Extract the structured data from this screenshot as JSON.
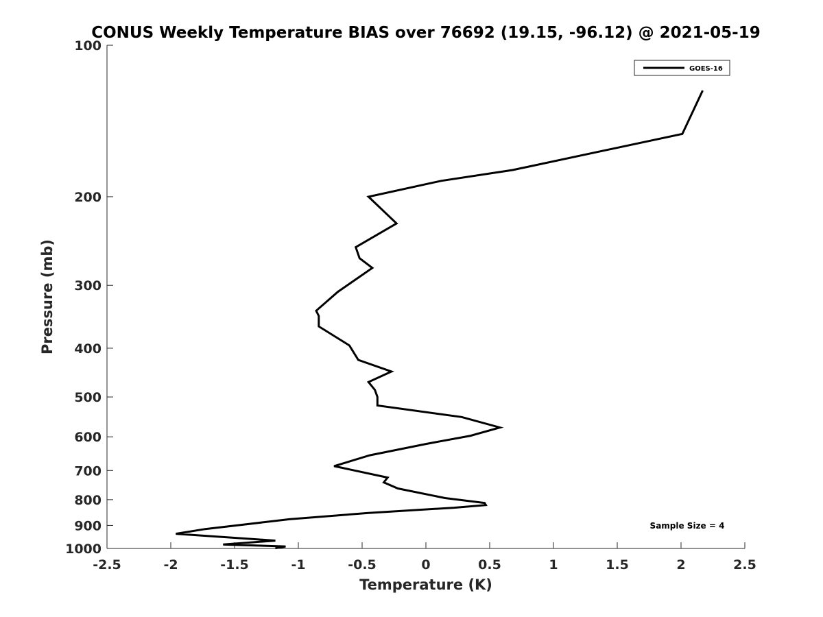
{
  "chart_data": {
    "type": "line",
    "title": "CONUS Weekly Temperature BIAS over 76692 (19.15, -96.12) @ 2021-05-19",
    "xlabel": "Temperature (K)",
    "ylabel": "Pressure (mb)",
    "xlim": [
      -2.5,
      2.5
    ],
    "ylim": [
      100,
      1000
    ],
    "yscale": "log",
    "yreversed": true,
    "xticks": [
      "-2.5",
      "-2",
      "-1.5",
      "-1",
      "-0.5",
      "0",
      "0.5",
      "1",
      "1.5",
      "2",
      "2.5"
    ],
    "yticks": [
      "100",
      "200",
      "300",
      "400",
      "500",
      "600",
      "700",
      "800",
      "900",
      "1000"
    ],
    "grid": false,
    "legend_position": "top-right",
    "annotation": "Sample Size = 4",
    "series": [
      {
        "name": "GOES-16",
        "color": "#000000",
        "x": [
          2.17,
          2.01,
          0.68,
          0.12,
          -0.45,
          -0.23,
          -0.55,
          -0.52,
          -0.42,
          -0.69,
          -0.86,
          -0.84,
          -0.84,
          -0.6,
          -0.53,
          -0.27,
          -0.45,
          -0.4,
          -0.38,
          -0.38,
          0.28,
          0.58,
          0.35,
          0.0,
          -0.44,
          -0.72,
          -0.3,
          -0.33,
          -0.22,
          0.15,
          0.46,
          0.47,
          0.22,
          -0.45,
          -1.07,
          -1.73,
          -1.96,
          -1.18,
          -1.59,
          -1.1,
          -1.18
        ],
        "y": [
          123,
          150,
          177,
          186,
          200,
          226,
          252,
          265,
          277,
          309,
          337,
          345,
          362,
          395,
          422,
          445,
          467,
          484,
          500,
          520,
          548,
          575,
          597,
          620,
          653,
          686,
          723,
          739,
          760,
          794,
          812,
          820,
          830,
          850,
          875,
          915,
          935,
          965,
          982,
          991,
          999
        ]
      }
    ]
  }
}
